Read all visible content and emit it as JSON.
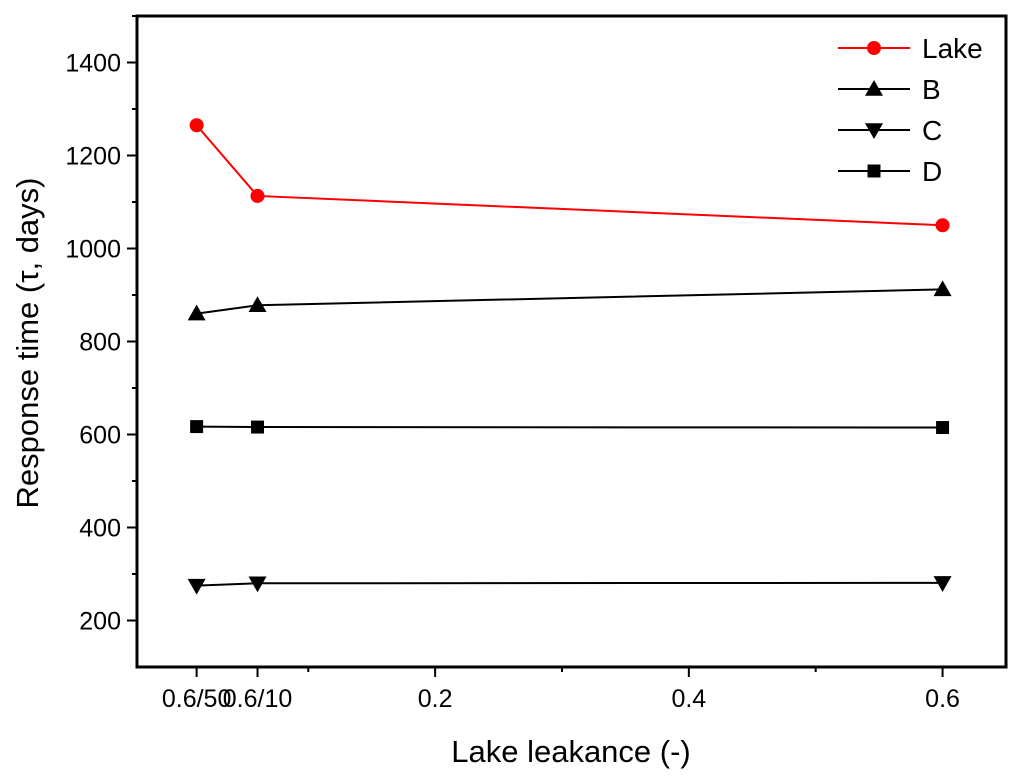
{
  "chart_data": {
    "type": "line",
    "title": "",
    "xlabel": "Lake leakance (-)",
    "ylabel": "Response time (τ, days)",
    "xlim": [
      -0.035,
      0.65
    ],
    "ylim": [
      100,
      1500
    ],
    "x": [
      0.012,
      0.06,
      0.6
    ],
    "x_tick_values": [
      0.012,
      0.06,
      0.2,
      0.4,
      0.6
    ],
    "x_tick_labels": [
      "0.6/50",
      "0.6/10",
      "0.2",
      "0.4",
      "0.6"
    ],
    "y_tick_values": [
      200,
      400,
      600,
      800,
      1000,
      1200,
      1400
    ],
    "y_tick_labels": [
      "200",
      "400",
      "600",
      "800",
      "1000",
      "1200",
      "1400"
    ],
    "grid": false,
    "legend_position": "top-right",
    "series": [
      {
        "name": "Lake",
        "values": [
          1265,
          1113,
          1050
        ],
        "color": "#ff0000",
        "marker": "circle"
      },
      {
        "name": "B",
        "values": [
          860,
          878,
          912
        ],
        "color": "#000000",
        "marker": "triangle-up"
      },
      {
        "name": "C",
        "values": [
          275,
          280,
          281
        ],
        "color": "#000000",
        "marker": "triangle-down"
      },
      {
        "name": "D",
        "values": [
          617,
          616,
          615
        ],
        "color": "#000000",
        "marker": "square"
      }
    ]
  }
}
